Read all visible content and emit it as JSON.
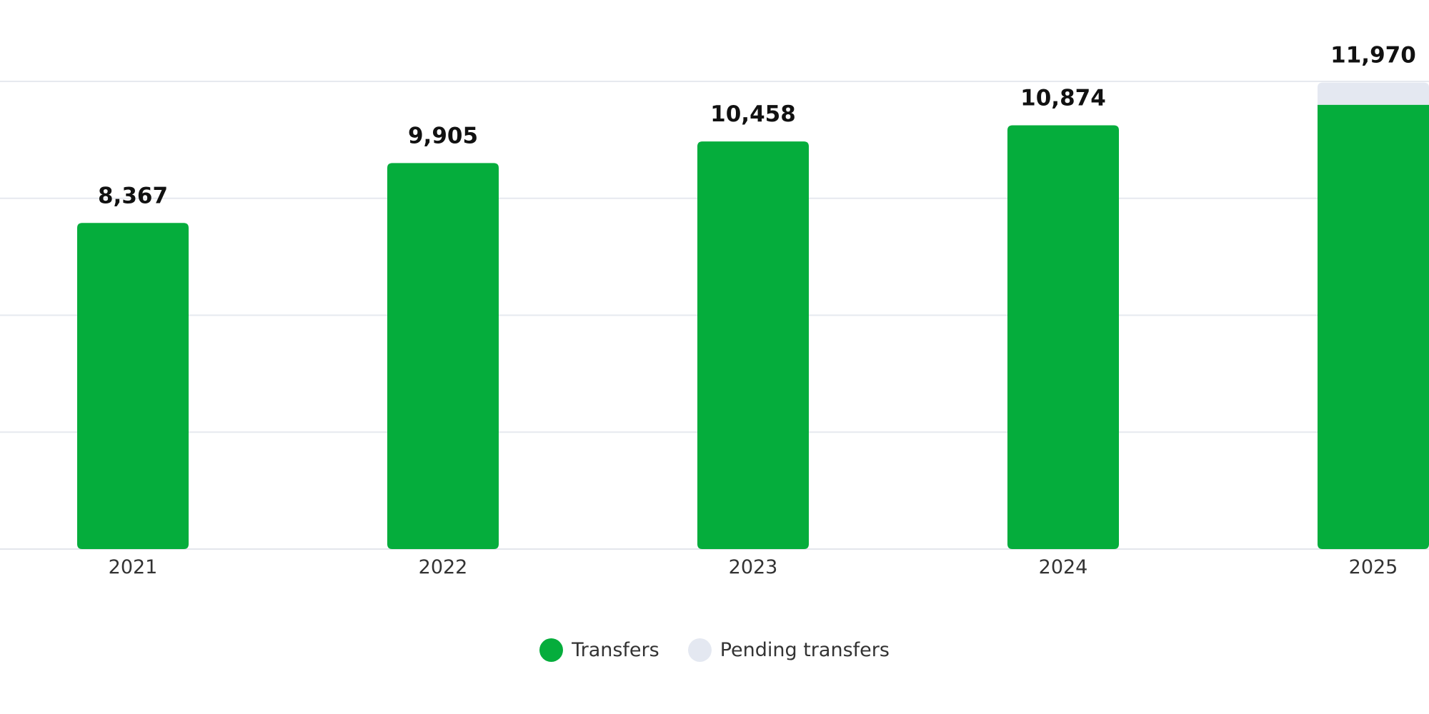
{
  "chart_data": {
    "type": "bar",
    "stacked": true,
    "categories": [
      "2021",
      "2022",
      "2023",
      "2024",
      "2025"
    ],
    "series": [
      {
        "name": "Transfers",
        "color": "#05ad3c",
        "values": [
          8367,
          9905,
          10458,
          10874,
          11400
        ]
      },
      {
        "name": "Pending transfers",
        "color": "#e4e8f1",
        "values": [
          0,
          0,
          0,
          0,
          570
        ]
      }
    ],
    "totals": [
      8367,
      9905,
      10458,
      10874,
      11970
    ],
    "value_labels": [
      "8,367",
      "9,905",
      "10,458",
      "10,874",
      "11,970"
    ],
    "ylim": [
      0,
      12000
    ],
    "y_grid_step": 3000,
    "grid": true,
    "y_tick_labels_visible": false,
    "legend_position": "bottom-center"
  },
  "legend": {
    "transfers_label": "Transfers",
    "pending_label": "Pending transfers",
    "transfers_color": "#05ad3c",
    "pending_color": "#e4e8f1"
  }
}
